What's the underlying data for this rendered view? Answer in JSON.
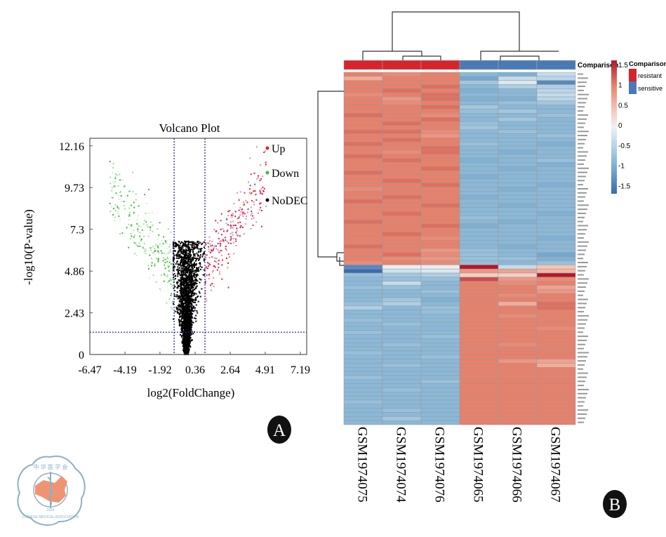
{
  "panels": {
    "a_label": "A",
    "b_label": "B"
  },
  "logo": {
    "chinese_text": "中华医学会",
    "english_text": "CHINESE MEDICAL ASSOCIATION",
    "year": "1915"
  },
  "chart_data": [
    {
      "type": "scatter",
      "title": "Volcano Plot",
      "xlabel": "log2(FoldChange)",
      "ylabel": "-log10(P-value)",
      "xticks": [
        "-6.47",
        "-4.19",
        "-1.92",
        "0.36",
        "2.64",
        "4.91",
        "7.19"
      ],
      "yticks": [
        "0",
        "2.43",
        "4.86",
        "7.3",
        "9.73",
        "12.16"
      ],
      "xlim": [
        -6.47,
        7.6
      ],
      "ylim": [
        0,
        12.6
      ],
      "thresholds": {
        "log2fc": [
          -1,
          1
        ],
        "neg_log10_p": 1.3
      },
      "legend_position": "top-right",
      "legend": [
        {
          "name": "Up",
          "color": "#e8202a"
        },
        {
          "name": "Down",
          "color": "#3cb83c"
        },
        {
          "name": "NoDEC",
          "color": "#000000"
        }
      ],
      "grid": false
    },
    {
      "type": "heatmap",
      "columns": [
        "GSM1974075",
        "GSM1974074",
        "GSM1974076",
        "GSM1974065",
        "GSM1974066",
        "GSM1974067"
      ],
      "annotation_title": "Comparison",
      "annotation": [
        "resistant",
        "resistant",
        "resistant",
        "sensitive",
        "sensitive",
        "sensitive"
      ],
      "annotation_legend": {
        "title": "Comparison",
        "items": [
          {
            "name": "resistant",
            "color": "#d7242b"
          },
          {
            "name": "sensitive",
            "color": "#4a7ab5"
          }
        ]
      },
      "colorbar": {
        "ticks": [
          "1.5",
          "1",
          "0.5",
          "0",
          "-0.5",
          "-1",
          "-1.5"
        ],
        "range": [
          -1.7,
          1.6
        ],
        "colors": {
          "low": "#3b6bb0",
          "mid": "#f4f4f4",
          "high": "#b2182b"
        }
      },
      "row_clusters": 2,
      "values": [
        [
          1.0,
          0.9,
          1.0,
          -0.9,
          -1.0,
          -0.4
        ],
        [
          0.6,
          1.0,
          1.0,
          -1.1,
          -0.4,
          -0.5
        ],
        [
          1.0,
          1.0,
          1.0,
          -0.7,
          -0.2,
          -1.4
        ],
        [
          1.0,
          1.0,
          1.1,
          -0.9,
          -0.6,
          -0.6
        ],
        [
          1.0,
          1.1,
          1.0,
          -1.0,
          -0.9,
          -0.5
        ],
        [
          0.9,
          1.0,
          1.1,
          -0.9,
          -0.9,
          -0.4
        ],
        [
          1.0,
          0.8,
          1.1,
          -1.0,
          -1.0,
          -0.5
        ],
        [
          1.0,
          0.9,
          1.0,
          -0.9,
          -0.8,
          -0.7
        ],
        [
          1.0,
          1.0,
          1.1,
          -0.7,
          -0.9,
          -0.9
        ],
        [
          1.0,
          1.0,
          1.0,
          -0.8,
          -0.7,
          -0.9
        ],
        [
          1.1,
          1.0,
          0.9,
          -0.9,
          -0.9,
          -0.8
        ],
        [
          1.0,
          1.0,
          1.1,
          -0.9,
          -0.7,
          -0.9
        ],
        [
          1.0,
          1.1,
          1.0,
          -0.8,
          -0.9,
          -0.9
        ],
        [
          1.0,
          1.0,
          1.0,
          -0.7,
          -0.9,
          -0.9
        ],
        [
          1.1,
          1.1,
          0.9,
          -0.9,
          -0.8,
          -0.9
        ],
        [
          1.0,
          1.0,
          0.8,
          -0.9,
          -0.9,
          -0.8
        ],
        [
          1.0,
          1.1,
          1.0,
          -0.9,
          -0.9,
          -0.9
        ],
        [
          1.1,
          1.0,
          1.0,
          -0.8,
          -0.9,
          -1.0
        ],
        [
          1.0,
          1.0,
          1.1,
          -0.9,
          -0.9,
          -0.9
        ],
        [
          1.0,
          0.9,
          1.1,
          -0.9,
          -1.0,
          -0.9
        ],
        [
          1.1,
          1.0,
          1.0,
          -0.9,
          -0.9,
          -0.9
        ],
        [
          1.0,
          1.1,
          1.0,
          -1.0,
          -0.9,
          -0.8
        ],
        [
          1.0,
          1.0,
          1.0,
          -0.9,
          -0.9,
          -1.0
        ],
        [
          1.0,
          1.0,
          1.1,
          -0.9,
          -1.0,
          -0.9
        ],
        [
          1.1,
          1.0,
          1.0,
          -0.9,
          -0.9,
          -0.9
        ],
        [
          1.0,
          1.0,
          1.0,
          -1.0,
          -0.9,
          -0.9
        ],
        [
          1.0,
          1.1,
          1.0,
          -0.9,
          -0.9,
          -0.9
        ],
        [
          1.0,
          1.0,
          1.1,
          -0.9,
          -0.9,
          -1.0
        ],
        [
          0.9,
          1.0,
          1.0,
          -0.9,
          -1.0,
          -0.9
        ],
        [
          1.0,
          1.0,
          1.0,
          -0.9,
          -0.9,
          -0.9
        ],
        [
          1.0,
          1.1,
          1.0,
          -1.0,
          -0.9,
          -0.9
        ],
        [
          1.1,
          1.0,
          1.0,
          -0.9,
          -0.9,
          -0.9
        ],
        [
          1.0,
          1.0,
          1.1,
          -0.9,
          -1.0,
          -0.9
        ],
        [
          1.0,
          1.0,
          1.0,
          -0.9,
          -0.9,
          -0.9
        ],
        [
          1.0,
          1.1,
          1.0,
          -0.9,
          -0.9,
          -1.0
        ],
        [
          1.0,
          1.0,
          1.0,
          -0.8,
          -0.9,
          -0.9
        ],
        [
          1.1,
          1.0,
          1.0,
          -0.9,
          -1.0,
          -0.9
        ],
        [
          1.0,
          1.0,
          1.1,
          -1.0,
          -0.9,
          -0.9
        ],
        [
          1.0,
          1.0,
          1.0,
          -0.9,
          -0.9,
          -0.9
        ],
        [
          1.0,
          1.1,
          1.0,
          -0.9,
          -0.9,
          -0.9
        ],
        [
          1.0,
          1.0,
          0.9,
          -0.9,
          -0.9,
          -1.0
        ],
        [
          1.0,
          1.0,
          1.0,
          -0.9,
          -0.9,
          -0.9
        ],
        [
          1.1,
          1.0,
          1.0,
          -0.9,
          -1.0,
          -0.9
        ],
        [
          1.0,
          1.0,
          0.8,
          -0.8,
          -0.9,
          -0.9
        ],
        [
          1.0,
          1.1,
          0.9,
          -0.8,
          -0.9,
          -1.1
        ],
        [
          1.0,
          0.9,
          0.8,
          -0.8,
          -0.8,
          -1.0
        ],
        [
          0.9,
          1.0,
          0.9,
          -0.8,
          -0.9,
          -0.8
        ],
        [
          -1.4,
          -0.1,
          -0.1,
          1.6,
          -0.4,
          0.4
        ],
        [
          -1.7,
          -0.3,
          -0.2,
          0.8,
          0.7,
          0.5
        ],
        [
          -0.8,
          -0.7,
          -0.6,
          0.3,
          0.3,
          1.6
        ],
        [
          -0.9,
          -0.8,
          -0.8,
          1.3,
          0.8,
          0.9
        ],
        [
          -0.9,
          -0.4,
          -0.9,
          1.0,
          0.9,
          1.0
        ],
        [
          -0.8,
          -0.8,
          -0.9,
          1.0,
          1.0,
          0.7
        ],
        [
          -0.9,
          -0.9,
          -0.8,
          1.0,
          1.0,
          0.8
        ],
        [
          -0.9,
          -0.9,
          -0.9,
          1.0,
          0.9,
          1.0
        ],
        [
          -0.9,
          -0.7,
          -1.0,
          1.0,
          1.0,
          1.0
        ],
        [
          -0.8,
          -0.6,
          -0.9,
          1.0,
          0.6,
          1.1
        ],
        [
          -0.6,
          -0.9,
          -0.8,
          1.0,
          1.0,
          1.1
        ],
        [
          -0.9,
          -0.9,
          -0.8,
          1.0,
          1.0,
          1.0
        ],
        [
          -0.9,
          -0.9,
          -0.9,
          1.0,
          0.9,
          1.0
        ],
        [
          -0.8,
          -0.9,
          -0.9,
          1.0,
          1.0,
          1.0
        ],
        [
          -0.9,
          -0.8,
          -0.9,
          1.0,
          1.0,
          1.0
        ],
        [
          -0.9,
          -0.9,
          -0.9,
          1.0,
          1.0,
          0.9
        ],
        [
          -0.8,
          -0.9,
          -0.9,
          1.0,
          1.0,
          1.0
        ],
        [
          -0.9,
          -0.9,
          -0.8,
          1.0,
          1.0,
          1.0
        ],
        [
          -0.9,
          -0.9,
          -0.9,
          1.0,
          1.0,
          1.0
        ],
        [
          -0.9,
          -0.8,
          -0.9,
          1.0,
          0.9,
          1.0
        ],
        [
          -0.9,
          -0.9,
          -0.9,
          1.0,
          1.0,
          1.0
        ],
        [
          -0.8,
          -0.9,
          -0.9,
          1.0,
          1.0,
          1.0
        ],
        [
          -0.9,
          -0.9,
          -0.8,
          1.0,
          1.0,
          1.0
        ],
        [
          -0.9,
          -0.9,
          -0.9,
          1.0,
          0.8,
          0.7
        ],
        [
          -0.9,
          -0.8,
          -0.9,
          1.0,
          1.0,
          0.6
        ],
        [
          -0.9,
          -0.9,
          -0.9,
          1.0,
          1.0,
          1.0
        ],
        [
          -0.9,
          -0.9,
          -0.9,
          1.0,
          1.0,
          1.0
        ],
        [
          -0.8,
          -0.9,
          -0.9,
          1.0,
          1.0,
          1.0
        ],
        [
          -0.9,
          -0.9,
          -0.8,
          1.0,
          1.0,
          1.0
        ],
        [
          -0.9,
          -0.9,
          -0.9,
          1.0,
          1.0,
          1.0
        ],
        [
          -0.9,
          -0.8,
          -0.9,
          1.0,
          1.0,
          1.0
        ],
        [
          -0.9,
          -0.9,
          -0.9,
          1.0,
          1.0,
          1.0
        ],
        [
          -0.9,
          -0.9,
          -0.9,
          1.0,
          1.0,
          1.0
        ],
        [
          -0.8,
          -0.9,
          -0.9,
          1.0,
          1.0,
          1.0
        ],
        [
          -0.9,
          -0.9,
          -0.9,
          1.0,
          1.0,
          1.0
        ],
        [
          -0.9,
          -0.8,
          -0.9,
          1.0,
          1.0,
          1.0
        ],
        [
          -0.9,
          -0.9,
          -0.9,
          1.0,
          1.0,
          1.0
        ],
        [
          -0.9,
          -0.7,
          -0.9,
          1.0,
          1.0,
          1.0
        ],
        [
          -0.9,
          -0.9,
          -0.9,
          1.0,
          1.0,
          1.0
        ]
      ]
    }
  ]
}
